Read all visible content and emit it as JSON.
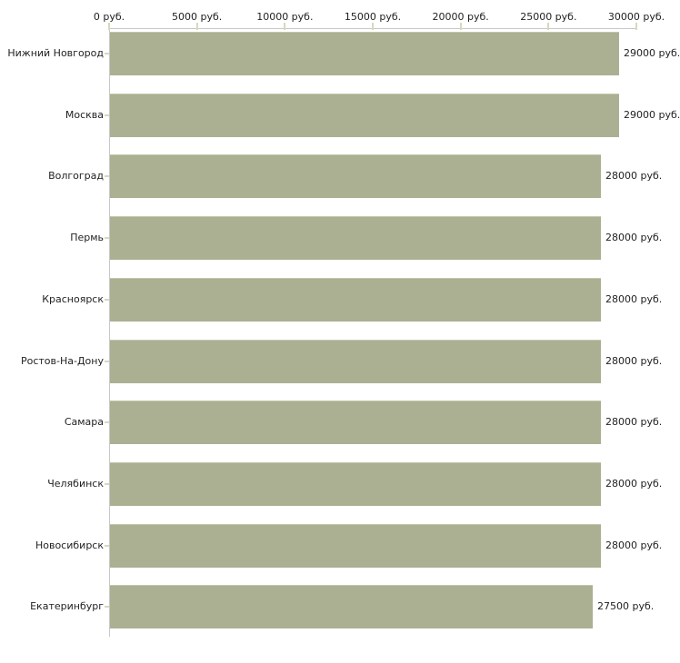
{
  "chart_data": {
    "type": "bar",
    "orientation": "horizontal",
    "title": "",
    "xlabel": "",
    "ylabel": "",
    "xlim": [
      0,
      30000
    ],
    "grid": false,
    "legend": false,
    "x_tick_step": 5000,
    "x_tick_labels": [
      "0 руб.",
      "5000 руб.",
      "10000 руб.",
      "15000 руб.",
      "20000 руб.",
      "25000 руб.",
      "30000 руб."
    ],
    "categories": [
      "Нижний Новгород",
      "Москва",
      "Волгоград",
      "Пермь",
      "Красноярск",
      "Ростов-На-Дону",
      "Самара",
      "Челябинск",
      "Новосибирск",
      "Екатеринбург"
    ],
    "values": [
      29000,
      29000,
      28000,
      28000,
      28000,
      28000,
      28000,
      28000,
      28000,
      27500
    ],
    "value_labels": [
      "29000 руб.",
      "29000 руб.",
      "28000 руб.",
      "28000 руб.",
      "28000 руб.",
      "28000 руб.",
      "28000 руб.",
      "28000 руб.",
      "28000 руб.",
      "27500 руб."
    ],
    "colors": {
      "bar": "#abb093",
      "axis_line": "#c8c8c8",
      "tick": "#d6d9bd",
      "text": "#1f1f1f",
      "background": "#ffffff"
    }
  }
}
